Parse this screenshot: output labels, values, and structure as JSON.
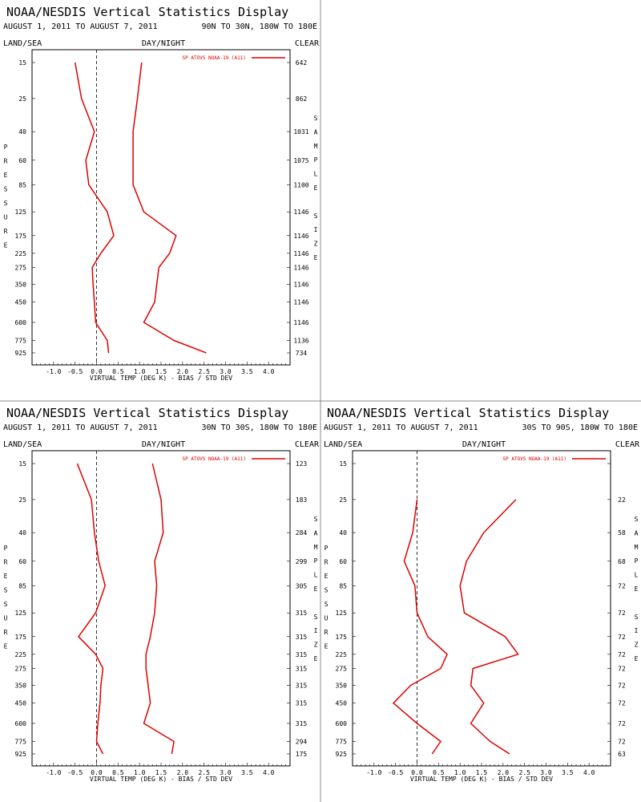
{
  "page": {
    "header_title": "NOAA/NESDIS Vertical Statistics Display",
    "date_range": "AUGUST 1, 2011 TO AUGUST 7, 2011",
    "land_sea": "LAND/SEA",
    "day_night": "DAY/NIGHT",
    "clear": "CLEAR",
    "y_axis_letters": [
      "P",
      "R",
      "E",
      "S",
      "S",
      "U",
      "R",
      "E"
    ],
    "size_axis_letters": [
      "S",
      "A",
      "M",
      "P",
      "L",
      "E",
      "",
      "S",
      "I",
      "Z",
      "E"
    ],
    "legend_label": "SP ATOVS NOAA-19 (A11)",
    "line_color": "#dd0000"
  },
  "chart_data": [
    {
      "type": "line",
      "region": "90N TO 30N, 180W TO 180E",
      "xlabel": "VIRTUAL TEMP (DEG K) - BIAS / STD DEV",
      "ylabel": "PRESSURE",
      "xlim": [
        -1.5,
        4.5
      ],
      "xticks": [
        "-1.0",
        "-0.5",
        "0.0",
        "0.5",
        "1.0",
        "1.5",
        "2.0",
        "2.5",
        "3.0",
        "3.5",
        "4.0"
      ],
      "pressure_levels": [
        "15",
        "25",
        "40",
        "60",
        "85",
        "125",
        "175",
        "225",
        "275",
        "350",
        "450",
        "600",
        "775",
        "925"
      ],
      "sample_size": [
        "642",
        "862",
        "1031",
        "1075",
        "1100",
        "1146",
        "1146",
        "1146",
        "1146",
        "1146",
        "1146",
        "1146",
        "1136",
        "734"
      ],
      "series": [
        {
          "name": "SP ATOVS NOAA-19 (A11)",
          "stat": "BIAS",
          "values": [
            -0.5,
            -0.35,
            -0.05,
            -0.25,
            -0.18,
            0.25,
            0.4,
            0.1,
            -0.1,
            -0.08,
            -0.05,
            -0.02,
            0.25,
            0.28
          ]
        },
        {
          "name": "SP ATOVS NOAA-19 (A11)",
          "stat": "STD DEV",
          "values": [
            1.05,
            0.95,
            0.85,
            0.85,
            0.85,
            1.1,
            1.85,
            1.7,
            1.45,
            1.4,
            1.35,
            1.1,
            1.8,
            2.55
          ]
        }
      ]
    },
    {
      "type": "line",
      "region": "30N TO 30S, 180W TO 180E",
      "xlabel": "VIRTUAL TEMP (DEG K) - BIAS / STD DEV",
      "ylabel": "PRESSURE",
      "xlim": [
        -1.5,
        4.5
      ],
      "xticks": [
        "-1.0",
        "-0.5",
        "0.0",
        "0.5",
        "1.0",
        "1.5",
        "2.0",
        "2.5",
        "3.0",
        "3.5",
        "4.0"
      ],
      "pressure_levels": [
        "15",
        "25",
        "40",
        "60",
        "85",
        "125",
        "175",
        "225",
        "275",
        "350",
        "450",
        "600",
        "775",
        "925"
      ],
      "sample_size": [
        "123",
        "183",
        "284",
        "299",
        "305",
        "315",
        "315",
        "315",
        "315",
        "315",
        "315",
        "315",
        "294",
        "175"
      ],
      "series": [
        {
          "name": "SP ATOVS NOAA-19 (A11)",
          "stat": "BIAS",
          "values": [
            -0.45,
            -0.12,
            -0.05,
            0.05,
            0.2,
            -0.02,
            -0.42,
            -0.02,
            0.15,
            0.1,
            0.08,
            0.03,
            0.0,
            0.15
          ]
        },
        {
          "name": "SP ATOVS NOAA-19 (A11)",
          "stat": "STD DEV",
          "values": [
            1.3,
            1.5,
            1.55,
            1.35,
            1.4,
            1.35,
            1.25,
            1.15,
            1.15,
            1.2,
            1.25,
            1.1,
            1.8,
            1.75
          ]
        }
      ]
    },
    {
      "type": "line",
      "region": "30S TO 90S, 180W TO 180E",
      "xlabel": "VIRTUAL TEMP (DEG K) - BIAS / STD DEV",
      "ylabel": "PRESSURE",
      "xlim": [
        -1.5,
        4.5
      ],
      "xticks": [
        "-1.0",
        "-0.5",
        "0.0",
        "0.5",
        "1.0",
        "1.5",
        "2.0",
        "2.5",
        "3.0",
        "3.5",
        "4.0"
      ],
      "pressure_levels": [
        "15",
        "25",
        "40",
        "60",
        "85",
        "125",
        "175",
        "225",
        "275",
        "350",
        "450",
        "600",
        "775",
        "925"
      ],
      "sample_size": [
        "",
        "22",
        "58",
        "68",
        "72",
        "72",
        "72",
        "72",
        "72",
        "72",
        "72",
        "72",
        "72",
        "63"
      ],
      "series": [
        {
          "name": "SP ATOVS NOAA-19 (A11)",
          "stat": "BIAS",
          "values": [
            null,
            0.0,
            -0.1,
            -0.3,
            -0.05,
            0.0,
            0.25,
            0.7,
            0.55,
            -0.15,
            -0.55,
            0.0,
            0.55,
            0.35
          ]
        },
        {
          "name": "SP ATOVS NOAA-19 (A11)",
          "stat": "STD DEV",
          "values": [
            null,
            2.3,
            1.55,
            1.15,
            1.0,
            1.1,
            2.05,
            2.35,
            1.3,
            1.25,
            1.55,
            1.25,
            1.7,
            2.15
          ]
        }
      ]
    }
  ]
}
